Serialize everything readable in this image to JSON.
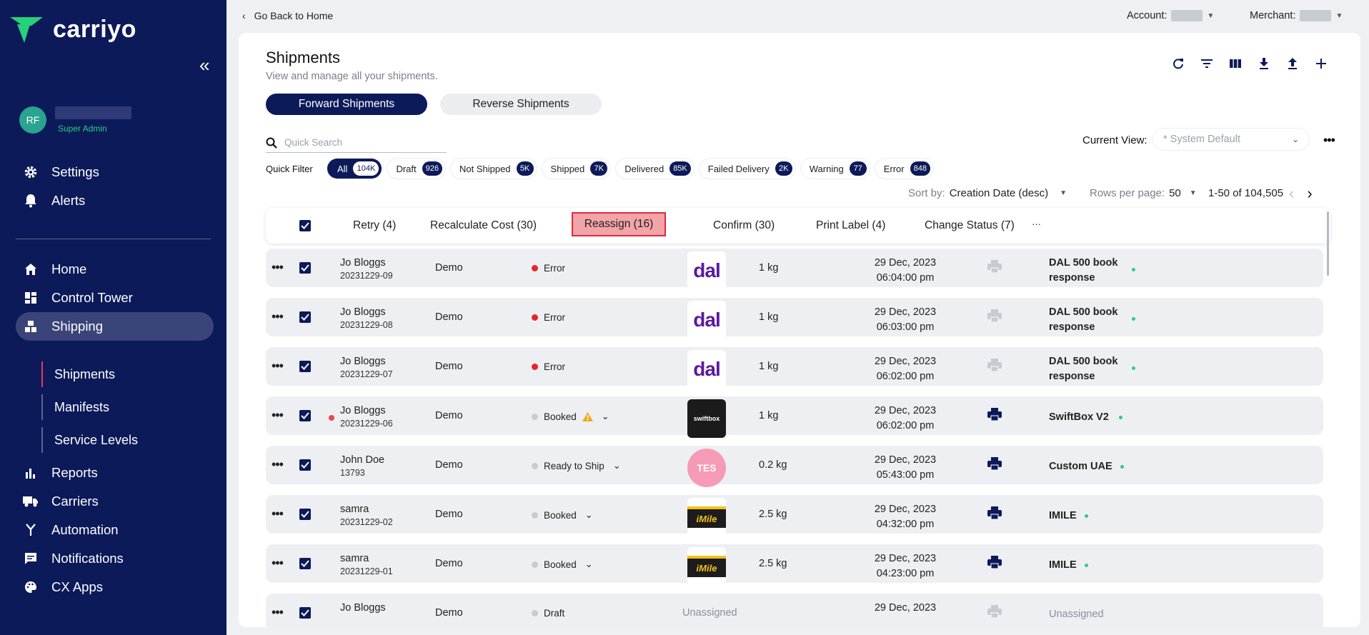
{
  "brand": {
    "name": "carriyo",
    "accent": "#0c1a5a",
    "mark_color": "#27d07b"
  },
  "user": {
    "initials": "RF",
    "role": "Super Admin"
  },
  "nav": {
    "settings": "Settings",
    "alerts": "Alerts",
    "home": "Home",
    "control_tower": "Control Tower",
    "shipping": "Shipping",
    "shipments": "Shipments",
    "manifests": "Manifests",
    "service_levels": "Service Levels",
    "reports": "Reports",
    "carriers": "Carriers",
    "automation": "Automation",
    "notifications": "Notifications",
    "cx_apps": "CX Apps"
  },
  "topbar": {
    "back": "Go Back to Home",
    "account_label": "Account:",
    "merchant_label": "Merchant:"
  },
  "page": {
    "title": "Shipments",
    "subtitle": "View and manage all your shipments."
  },
  "tabs": {
    "forward": "Forward Shipments",
    "reverse": "Reverse Shipments"
  },
  "search": {
    "placeholder": "Quick Search"
  },
  "view": {
    "label": "Current View:",
    "value": "* System Default"
  },
  "quick_filter": {
    "label": "Quick Filter",
    "chips": [
      {
        "label": "All",
        "count": "104K"
      },
      {
        "label": "Draft",
        "count": "926"
      },
      {
        "label": "Not Shipped",
        "count": "5K"
      },
      {
        "label": "Shipped",
        "count": "7K"
      },
      {
        "label": "Delivered",
        "count": "85K"
      },
      {
        "label": "Failed Delivery",
        "count": "2K"
      },
      {
        "label": "Warning",
        "count": "77"
      },
      {
        "label": "Error",
        "count": "848"
      }
    ]
  },
  "sort": {
    "label": "Sort by:",
    "value": "Creation Date (desc)",
    "rows_label": "Rows per page:",
    "rows_value": "50",
    "range": "1-50 of 104,505"
  },
  "bulk": {
    "retry": "Retry (4)",
    "recalc": "Recalculate Cost (30)",
    "reassign": "Reassign (16)",
    "confirm": "Confirm (30)",
    "print": "Print Label (4)",
    "change_status": "Change Status (7)",
    "more": "···"
  },
  "rows": [
    {
      "name": "Jo Bloggs",
      "ref": "20231229-09",
      "merchant": "Demo",
      "status": "Error",
      "status_color": "#e5252a",
      "carrier_logo": "dal",
      "weight": "1 kg",
      "date": "29 Dec, 2023",
      "time": "06:04:00 pm",
      "carrier": "DAL 500 book response"
    },
    {
      "name": "Jo Bloggs",
      "ref": "20231229-08",
      "merchant": "Demo",
      "status": "Error",
      "status_color": "#e5252a",
      "carrier_logo": "dal",
      "weight": "1 kg",
      "date": "29 Dec, 2023",
      "time": "06:03:00 pm",
      "carrier": "DAL 500 book response"
    },
    {
      "name": "Jo Bloggs",
      "ref": "20231229-07",
      "merchant": "Demo",
      "status": "Error",
      "status_color": "#e5252a",
      "carrier_logo": "dal",
      "weight": "1 kg",
      "date": "29 Dec, 2023",
      "time": "06:02:00 pm",
      "carrier": "DAL 500 book response"
    },
    {
      "name": "Jo Bloggs",
      "ref": "20231229-06",
      "merchant": "Demo",
      "status": "Booked",
      "status_color": "#c9cbd1",
      "carrier_logo": "swiftbox",
      "weight": "1 kg",
      "date": "29 Dec, 2023",
      "time": "06:02:00 pm",
      "carrier": "SwiftBox V2"
    },
    {
      "name": "John Doe",
      "ref": "13793",
      "merchant": "Demo",
      "status": "Ready to Ship",
      "status_color": "#c9cbd1",
      "carrier_logo": "TES",
      "weight": "0.2 kg",
      "date": "29 Dec, 2023",
      "time": "05:43:00 pm",
      "carrier": "Custom UAE"
    },
    {
      "name": "samra",
      "ref": "20231229-02",
      "merchant": "Demo",
      "status": "Booked",
      "status_color": "#c9cbd1",
      "carrier_logo": "iMile",
      "weight": "2.5 kg",
      "date": "29 Dec, 2023",
      "time": "04:32:00 pm",
      "carrier": "IMILE"
    },
    {
      "name": "samra",
      "ref": "20231229-01",
      "merchant": "Demo",
      "status": "Booked",
      "status_color": "#c9cbd1",
      "carrier_logo": "iMile",
      "weight": "2.5 kg",
      "date": "29 Dec, 2023",
      "time": "04:23:00 pm",
      "carrier": "IMILE"
    },
    {
      "name": "Jo Bloggs",
      "merchant": "Demo",
      "status": "Draft",
      "status_color": "#c9cbd1",
      "carrier_logo": "Unassigned",
      "date": "29 Dec, 2023",
      "carrier": "Unassigned"
    }
  ],
  "logo_labels": {
    "dal": "dal",
    "swiftbox": "swiftbox",
    "tes": "TES",
    "imile": "iMile"
  }
}
